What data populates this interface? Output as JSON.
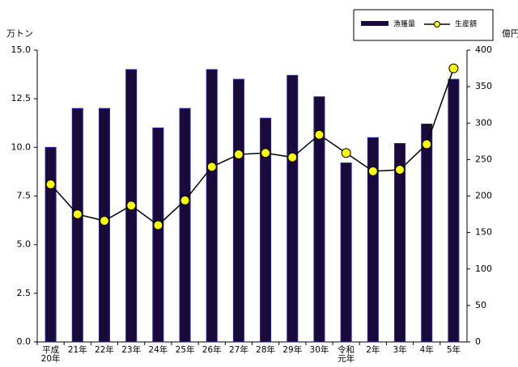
{
  "chart_data": {
    "type": "bar_line",
    "y_unit": "万トン",
    "y2_unit": "億円",
    "categories": [
      "平成20年",
      "21年",
      "22年",
      "23年",
      "24年",
      "25年",
      "26年",
      "27年",
      "28年",
      "29年",
      "30年",
      "令和元年",
      "2年",
      "3年",
      "4年",
      "5年"
    ],
    "series": [
      {
        "name": "漁獲量",
        "type": "bar",
        "color": "#1a0a3a",
        "values": [
          10.0,
          12.0,
          12.0,
          14.0,
          11.0,
          12.0,
          14.0,
          13.5,
          11.5,
          13.7,
          12.6,
          9.2,
          10.5,
          10.2,
          11.2,
          13.5
        ]
      },
      {
        "name": "生産額",
        "type": "line",
        "axis": "y2",
        "color": "#000000",
        "marker_color": "#ffff00",
        "values": [
          216,
          175,
          166,
          187,
          160,
          194,
          240,
          257,
          259,
          253,
          284,
          259,
          234,
          236,
          271,
          375
        ]
      }
    ],
    "ylim": [
      0,
      15
    ],
    "yticks": [
      {
        "value": 0,
        "label": "0.0"
      },
      {
        "value": 2.5,
        "label": "2.5"
      },
      {
        "value": 5,
        "label": "5.0"
      },
      {
        "value": 7.5,
        "label": "7.5"
      },
      {
        "value": 10,
        "label": "10.0"
      },
      {
        "value": 12.5,
        "label": "12.5"
      },
      {
        "value": 15,
        "label": "15.0"
      }
    ],
    "y2lim": [
      0,
      400
    ],
    "y2ticks": [
      0,
      50,
      100,
      150,
      200,
      250,
      300,
      350,
      400
    ],
    "legend": "top-right"
  }
}
